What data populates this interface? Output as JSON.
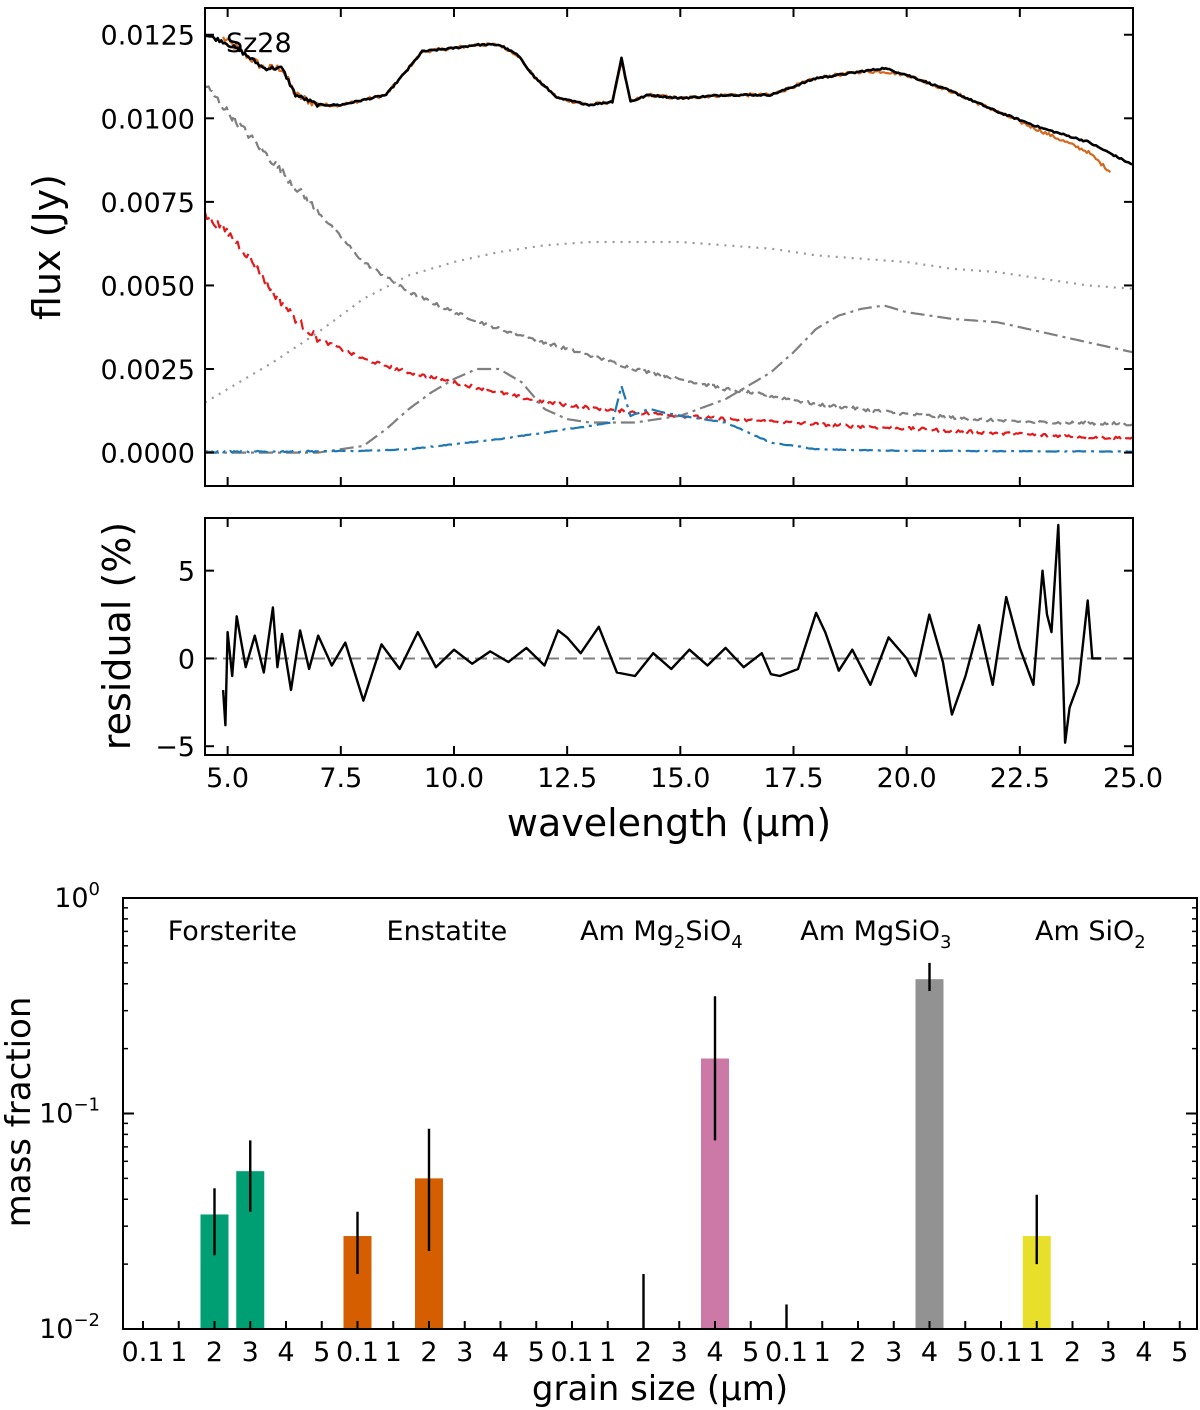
{
  "chart_data": [
    {
      "name": "spectrum_fit",
      "type": "line",
      "xlim": [
        4.5,
        25.0
      ],
      "ylim": [
        -0.001,
        0.0133
      ],
      "xlabel": "",
      "ylabel": "flux (Jy)",
      "annotation": "Sz28",
      "yticks": [
        0.0,
        0.0025,
        0.005,
        0.0075,
        0.01,
        0.0125
      ],
      "ytick_labels": [
        "0.0000",
        "0.0025",
        "0.0050",
        "0.0075",
        "0.0100",
        "0.0125"
      ],
      "series": [
        {
          "name": "observed",
          "color": "#d2691e",
          "style": "solid",
          "noise": 0.0001,
          "x": [
            4.9,
            5.3,
            5.8,
            6.2,
            6.5,
            7.0,
            7.5,
            8.5,
            9.0,
            9.3,
            10.0,
            10.5,
            11.0,
            11.4,
            11.8,
            12.3,
            13.0,
            13.5,
            13.7,
            13.9,
            14.3,
            15.0,
            16.0,
            17.0,
            18.0,
            19.0,
            19.5,
            20.0,
            21.0,
            22.0,
            23.0,
            24.0,
            24.5
          ],
          "y": [
            0.0124,
            0.012,
            0.0115,
            0.0115,
            0.0107,
            0.0104,
            0.0104,
            0.0107,
            0.0115,
            0.012,
            0.0121,
            0.0122,
            0.0122,
            0.0119,
            0.0112,
            0.0106,
            0.0104,
            0.0105,
            0.0117,
            0.0105,
            0.0107,
            0.0106,
            0.0107,
            0.0107,
            0.0112,
            0.0114,
            0.0114,
            0.0113,
            0.0108,
            0.0102,
            0.0096,
            0.009,
            0.0084
          ]
        },
        {
          "name": "model",
          "color": "#000000",
          "style": "solid",
          "noise": 5e-05,
          "x": [
            4.5,
            4.9,
            5.3,
            5.8,
            6.2,
            6.5,
            7.0,
            7.5,
            8.5,
            9.0,
            9.3,
            10.0,
            10.5,
            11.0,
            11.4,
            11.8,
            12.3,
            13.0,
            13.5,
            13.7,
            13.9,
            14.3,
            15.0,
            16.0,
            17.0,
            18.0,
            19.0,
            19.5,
            20.0,
            21.0,
            22.0,
            23.0,
            24.0,
            25.0
          ],
          "y": [
            0.0125,
            0.0123,
            0.012,
            0.0115,
            0.0115,
            0.0107,
            0.0104,
            0.0104,
            0.0107,
            0.0115,
            0.012,
            0.0121,
            0.0122,
            0.0122,
            0.0119,
            0.0112,
            0.0106,
            0.0104,
            0.0105,
            0.0118,
            0.0105,
            0.0107,
            0.0106,
            0.0107,
            0.0107,
            0.0112,
            0.0114,
            0.0115,
            0.0113,
            0.0108,
            0.0102,
            0.0097,
            0.0093,
            0.0086
          ]
        },
        {
          "name": "grey_dashed",
          "color": "#7f7f7f",
          "style": "dashed",
          "noise": 0.0001,
          "x": [
            4.5,
            5.0,
            6.0,
            7.0,
            8.0,
            9.0,
            10.0,
            11.0,
            12.0,
            13.0,
            14.0,
            15.0,
            16.0,
            17.0,
            18.0,
            19.0,
            20.0,
            21.0,
            22.0,
            23.0,
            24.0,
            25.0
          ],
          "y": [
            0.011,
            0.0102,
            0.0087,
            0.0072,
            0.0057,
            0.0048,
            0.0042,
            0.0037,
            0.0033,
            0.0029,
            0.0025,
            0.0022,
            0.0019,
            0.0017,
            0.00145,
            0.0013,
            0.00115,
            0.00105,
            0.00095,
            0.0009,
            0.00088,
            0.00085
          ]
        },
        {
          "name": "red_dashed",
          "color": "#e31a1c",
          "style": "dashed",
          "noise": 0.0001,
          "x": [
            4.5,
            5.0,
            5.5,
            6.0,
            6.5,
            7.0,
            7.5,
            8.0,
            9.0,
            10.0,
            11.0,
            12.0,
            13.0,
            14.0,
            15.0,
            16.0,
            17.0,
            18.0,
            19.0,
            20.0,
            21.0,
            22.0,
            23.0,
            24.0,
            25.0
          ],
          "y": [
            0.0071,
            0.0066,
            0.0058,
            0.0048,
            0.004,
            0.0034,
            0.0031,
            0.0028,
            0.0024,
            0.0021,
            0.0018,
            0.0015,
            0.00135,
            0.0012,
            0.0011,
            0.001,
            0.00093,
            0.00085,
            0.00078,
            0.00072,
            0.00065,
            0.00058,
            0.00052,
            0.00047,
            0.00043
          ]
        },
        {
          "name": "grey_dotted",
          "color": "#999999",
          "style": "dotted",
          "noise": 0,
          "x": [
            4.5,
            5.0,
            6.0,
            7.0,
            8.0,
            9.0,
            10.0,
            11.0,
            12.0,
            13.0,
            14.0,
            15.0,
            16.0,
            17.0,
            18.0,
            19.0,
            20.0,
            21.0,
            22.0,
            23.0,
            24.0,
            25.0
          ],
          "y": [
            0.0015,
            0.0019,
            0.0027,
            0.0036,
            0.0046,
            0.0053,
            0.0057,
            0.006,
            0.0062,
            0.0063,
            0.0063,
            0.0063,
            0.0062,
            0.0061,
            0.0059,
            0.0058,
            0.0057,
            0.0055,
            0.0054,
            0.0052,
            0.005,
            0.0049
          ]
        },
        {
          "name": "grey_dashdot",
          "color": "#7f7f7f",
          "style": "dashdot",
          "noise": 0,
          "x": [
            4.5,
            6.0,
            7.0,
            8.0,
            8.5,
            9.0,
            9.5,
            10.0,
            10.5,
            11.0,
            11.5,
            12.0,
            12.5,
            13.0,
            13.5,
            14.0,
            15.0,
            16.0,
            17.0,
            17.5,
            18.0,
            18.5,
            19.0,
            19.5,
            20.0,
            21.0,
            22.0,
            23.0,
            24.0,
            25.0
          ],
          "y": [
            0.0,
            0.0,
            0.0,
            0.0002,
            0.0007,
            0.0013,
            0.0018,
            0.0022,
            0.0025,
            0.0025,
            0.0021,
            0.0013,
            0.001,
            0.0009,
            0.0009,
            0.0009,
            0.0011,
            0.0016,
            0.0024,
            0.003,
            0.0037,
            0.0041,
            0.0043,
            0.0044,
            0.0042,
            0.004,
            0.0039,
            0.0036,
            0.0033,
            0.003
          ]
        },
        {
          "name": "blue_dashdot",
          "color": "#1f77b4",
          "style": "dashdot",
          "noise": 2e-05,
          "x": [
            4.5,
            6.0,
            8.0,
            9.0,
            10.0,
            11.0,
            11.5,
            12.0,
            12.5,
            13.0,
            13.5,
            13.7,
            13.9,
            14.3,
            15.0,
            15.5,
            16.0,
            16.5,
            17.0,
            18.0,
            20.0,
            25.0
          ],
          "y": [
            2e-05,
            3e-05,
            5e-05,
            0.0001,
            0.00025,
            0.0004,
            0.0005,
            0.0006,
            0.0007,
            0.0008,
            0.0009,
            0.002,
            0.0011,
            0.0013,
            0.0011,
            0.001,
            0.0009,
            0.0006,
            0.0003,
            0.0001,
            5e-05,
            3e-05
          ]
        }
      ]
    },
    {
      "name": "residual",
      "type": "line",
      "xlim": [
        4.5,
        25.0
      ],
      "ylim": [
        -5.5,
        8.0
      ],
      "xlabel": "wavelength (μm)",
      "ylabel": "residual (%)",
      "xticks": [
        5.0,
        7.5,
        10.0,
        12.5,
        15.0,
        17.5,
        20.0,
        22.5,
        25.0
      ],
      "xtick_labels": [
        "5.0",
        "7.5",
        "10.0",
        "12.5",
        "15.0",
        "17.5",
        "20.0",
        "22.5",
        "25.0"
      ],
      "yticks": [
        -5,
        0,
        5
      ],
      "ytick_labels": [
        "−5",
        "0",
        "5"
      ],
      "zero_line": 0,
      "series": [
        {
          "name": "residual",
          "color": "#000000",
          "x": [
            4.9,
            4.95,
            5.0,
            5.1,
            5.2,
            5.4,
            5.6,
            5.8,
            6.0,
            6.1,
            6.2,
            6.4,
            6.6,
            6.8,
            7.0,
            7.3,
            7.6,
            8.0,
            8.4,
            8.8,
            9.2,
            9.6,
            10.0,
            10.4,
            10.8,
            11.2,
            11.6,
            12.0,
            12.3,
            12.5,
            12.8,
            13.2,
            13.6,
            14.0,
            14.4,
            14.8,
            15.2,
            15.6,
            16.0,
            16.4,
            16.8,
            17.0,
            17.2,
            17.6,
            18.0,
            18.2,
            18.5,
            18.8,
            19.2,
            19.6,
            20.0,
            20.2,
            20.5,
            20.8,
            21.0,
            21.3,
            21.6,
            21.9,
            22.2,
            22.5,
            22.8,
            23.0,
            23.1,
            23.2,
            23.35,
            23.5,
            23.6,
            23.8,
            24.0,
            24.1,
            24.3
          ],
          "y": [
            -1.8,
            -3.8,
            1.5,
            -1.0,
            2.4,
            -0.5,
            1.3,
            -0.8,
            2.9,
            -0.5,
            1.4,
            -1.8,
            1.6,
            -0.6,
            1.3,
            -0.4,
            0.9,
            -2.4,
            0.8,
            -0.6,
            1.5,
            -0.5,
            0.5,
            -0.3,
            0.4,
            -0.2,
            0.6,
            -0.4,
            1.6,
            1.2,
            0.3,
            1.8,
            -0.8,
            -1.0,
            0.3,
            -0.6,
            0.5,
            -0.4,
            0.6,
            -0.5,
            0.3,
            -0.9,
            -1.0,
            -0.6,
            2.6,
            1.5,
            -0.7,
            0.5,
            -1.5,
            1.2,
            0.0,
            -1.0,
            2.5,
            -0.2,
            -3.2,
            -1.0,
            1.9,
            -1.5,
            3.5,
            0.6,
            -1.5,
            5.0,
            2.5,
            1.5,
            7.6,
            -4.8,
            -2.8,
            -1.4,
            3.3,
            0.0,
            0.0
          ]
        }
      ]
    },
    {
      "name": "grain_mass_fractions",
      "type": "bar",
      "yscale": "log",
      "ylim": [
        0.01,
        1.0
      ],
      "xlabel": "grain size (μm)",
      "ylabel": "mass fraction",
      "ytick_labels": [
        {
          "base": "10",
          "exp": "−2",
          "value": 0.01
        },
        {
          "base": "10",
          "exp": "−1",
          "value": 0.1
        },
        {
          "base": "10",
          "exp": "0",
          "value": 1.0
        }
      ],
      "xtick_labels": [
        "0.1",
        "1",
        "2",
        "3",
        "4",
        "5",
        "0.1",
        "1",
        "2",
        "3",
        "4",
        "5",
        "0.1",
        "1",
        "2",
        "3",
        "4",
        "5",
        "0.1",
        "1",
        "2",
        "3",
        "4",
        "5",
        "0.1",
        "1",
        "2",
        "3",
        "4",
        "5"
      ],
      "groups": [
        {
          "label": "Forsterite",
          "color": "#009e73",
          "bars": [
            {
              "size": "2",
              "value": 0.034,
              "err_low": 0.022,
              "err_high": 0.045
            },
            {
              "size": "3",
              "value": 0.054,
              "err_low": 0.035,
              "err_high": 0.075
            }
          ]
        },
        {
          "label": "Enstatite",
          "color": "#d55e00",
          "bars": [
            {
              "size": "0.1",
              "value": 0.027,
              "err_low": 0.018,
              "err_high": 0.035
            },
            {
              "size": "2",
              "value": 0.05,
              "err_low": 0.023,
              "err_high": 0.085
            }
          ]
        },
        {
          "label": "Am Mg2SiO4",
          "label_parts": [
            "Am Mg",
            "2",
            "SiO",
            "4"
          ],
          "color": "#cc79a7",
          "bars": [
            {
              "size": "2",
              "value": 0.0,
              "err_low": 0.0,
              "err_high": 0.018
            },
            {
              "size": "4",
              "value": 0.18,
              "err_low": 0.075,
              "err_high": 0.35
            }
          ]
        },
        {
          "label": "Am MgSiO3",
          "label_parts": [
            "Am MgSiO",
            "3"
          ],
          "color": "#929292",
          "bars": [
            {
              "size": "0.1",
              "value": 0.0,
              "err_low": 0.0,
              "err_high": 0.013
            },
            {
              "size": "4",
              "value": 0.42,
              "err_low": 0.37,
              "err_high": 0.5
            }
          ]
        },
        {
          "label": "Am SiO2",
          "label_parts": [
            "Am SiO",
            "2"
          ],
          "color": "#e8df2a",
          "bars": [
            {
              "size": "1",
              "value": 0.027,
              "err_low": 0.02,
              "err_high": 0.042
            }
          ]
        }
      ]
    }
  ]
}
